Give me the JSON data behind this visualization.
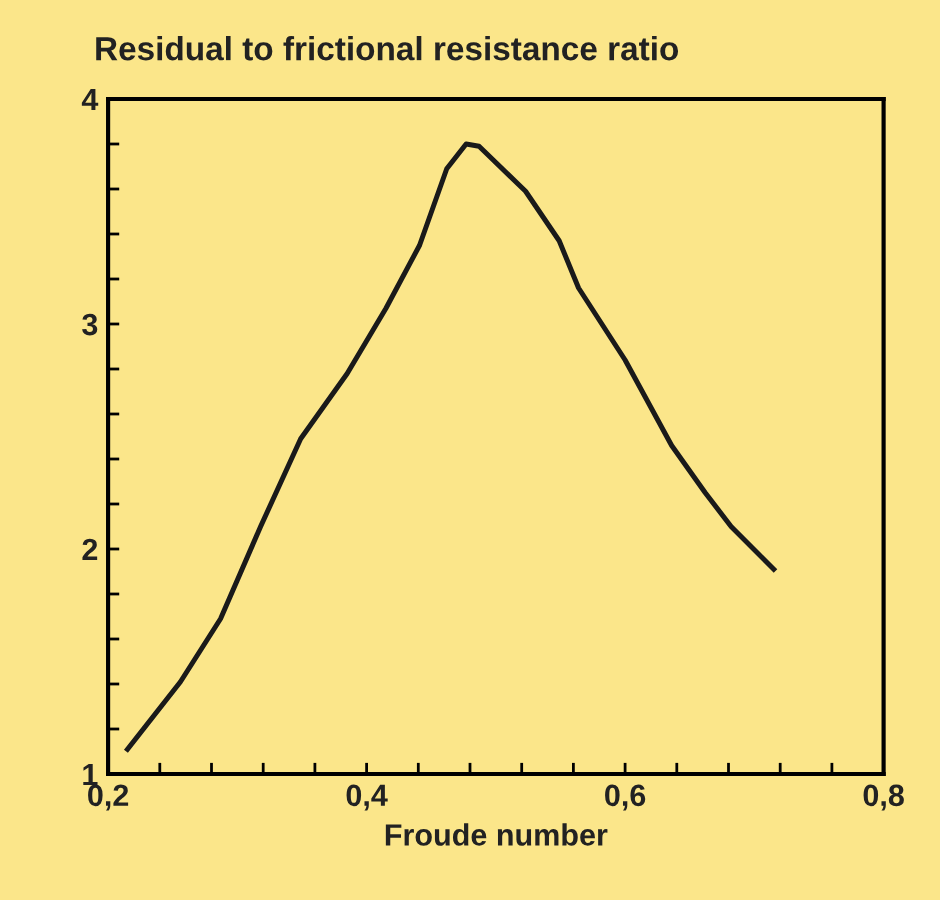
{
  "chart_data": {
    "type": "line",
    "title": "Residual to frictional resistance ratio",
    "xlabel": "Froude number",
    "x": [
      0.215,
      0.256,
      0.287,
      0.318,
      0.349,
      0.385,
      0.415,
      0.441,
      0.462,
      0.477,
      0.487,
      0.523,
      0.549,
      0.564,
      0.6,
      0.636,
      0.662,
      0.682,
      0.715
    ],
    "series": [
      {
        "color": "#1a1a1a",
        "values": [
          1.11,
          1.41,
          1.69,
          2.1,
          2.49,
          2.78,
          3.07,
          3.35,
          3.69,
          3.8,
          3.79,
          3.59,
          3.37,
          3.16,
          2.84,
          2.46,
          2.25,
          2.1,
          1.91
        ]
      }
    ],
    "xlim": [
      0.2,
      0.8
    ],
    "ylim": [
      1,
      4
    ],
    "xticks": [
      {
        "value": 0.2,
        "label": "0,2"
      },
      {
        "value": 0.24,
        "label": null
      },
      {
        "value": 0.28,
        "label": null
      },
      {
        "value": 0.32,
        "label": null
      },
      {
        "value": 0.36,
        "label": null
      },
      {
        "value": 0.4,
        "label": "0,4"
      },
      {
        "value": 0.44,
        "label": null
      },
      {
        "value": 0.48,
        "label": null
      },
      {
        "value": 0.52,
        "label": null
      },
      {
        "value": 0.56,
        "label": null
      },
      {
        "value": 0.6,
        "label": "0,6"
      },
      {
        "value": 0.64,
        "label": null
      },
      {
        "value": 0.68,
        "label": null
      },
      {
        "value": 0.72,
        "label": null
      },
      {
        "value": 0.76,
        "label": null
      },
      {
        "value": 0.8,
        "label": "0,8"
      }
    ],
    "yticks": [
      1,
      {
        "value": 1.2,
        "label": null
      },
      {
        "value": 1.4,
        "label": null
      },
      {
        "value": 1.6,
        "label": null
      },
      {
        "value": 1.8,
        "label": null
      },
      2,
      {
        "value": 2.2,
        "label": null
      },
      {
        "value": 2.4,
        "label": null
      },
      {
        "value": 2.6,
        "label": null
      },
      {
        "value": 2.8,
        "label": null
      },
      3,
      {
        "value": 3.2,
        "label": null
      },
      {
        "value": 3.4,
        "label": null
      },
      {
        "value": 3.6,
        "label": null
      },
      {
        "value": 3.8,
        "label": null
      },
      4
    ],
    "grid": false,
    "legend": false,
    "marker": "none",
    "line_style": "solid"
  }
}
